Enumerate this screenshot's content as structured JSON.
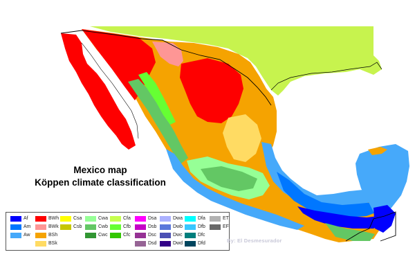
{
  "map": {
    "title_line1": "Mexico map",
    "title_line2": "Köppen climate classification",
    "credit": "By: El Desmesurador"
  },
  "legend": {
    "items": [
      {
        "code": "Af",
        "color": "#0000fe",
        "col": 0,
        "row": 0
      },
      {
        "code": "Am",
        "color": "#0077ff",
        "col": 0,
        "row": 1
      },
      {
        "code": "Aw",
        "color": "#46a9fa",
        "col": 0,
        "row": 2
      },
      {
        "code": "BWh",
        "color": "#fe0000",
        "col": 1,
        "row": 0
      },
      {
        "code": "BWk",
        "color": "#fe9695",
        "col": 1,
        "row": 1
      },
      {
        "code": "BSh",
        "color": "#f5a301",
        "col": 1,
        "row": 2
      },
      {
        "code": "BSk",
        "color": "#ffdb63",
        "col": 1,
        "row": 3
      },
      {
        "code": "Csa",
        "color": "#ffff00",
        "col": 2,
        "row": 0
      },
      {
        "code": "Csb",
        "color": "#c6c700",
        "col": 2,
        "row": 1
      },
      {
        "code": "Cwa",
        "color": "#96ff96",
        "col": 3,
        "row": 0
      },
      {
        "code": "Cwb",
        "color": "#63c764",
        "col": 3,
        "row": 1
      },
      {
        "code": "Cwc",
        "color": "#329633",
        "col": 3,
        "row": 2
      },
      {
        "code": "Cfa",
        "color": "#c6ff4e",
        "col": 4,
        "row": 0
      },
      {
        "code": "Cfb",
        "color": "#66ff33",
        "col": 4,
        "row": 1
      },
      {
        "code": "Cfc",
        "color": "#33c701",
        "col": 4,
        "row": 2
      },
      {
        "code": "Dsa",
        "color": "#ff00fe",
        "col": 5,
        "row": 0
      },
      {
        "code": "Dsb",
        "color": "#c600c7",
        "col": 5,
        "row": 1
      },
      {
        "code": "Dsc",
        "color": "#963295",
        "col": 5,
        "row": 2
      },
      {
        "code": "Dsd",
        "color": "#966495",
        "col": 5,
        "row": 3
      },
      {
        "code": "Dwa",
        "color": "#abb1ff",
        "col": 6,
        "row": 0
      },
      {
        "code": "Dwb",
        "color": "#5a77db",
        "col": 6,
        "row": 1
      },
      {
        "code": "Dwc",
        "color": "#4c51b5",
        "col": 6,
        "row": 2
      },
      {
        "code": "Dwd",
        "color": "#320087",
        "col": 6,
        "row": 3
      },
      {
        "code": "Dfa",
        "color": "#00ffff",
        "col": 7,
        "row": 0
      },
      {
        "code": "Dfb",
        "color": "#38c7ff",
        "col": 7,
        "row": 1
      },
      {
        "code": "Dfc",
        "color": "#007e7d",
        "col": 7,
        "row": 2
      },
      {
        "code": "Dfd",
        "color": "#00455e",
        "col": 7,
        "row": 3
      },
      {
        "code": "ET",
        "color": "#b2b2b2",
        "col": 8,
        "row": 0
      },
      {
        "code": "EF",
        "color": "#686868",
        "col": 8,
        "row": 1
      }
    ]
  },
  "colors": {
    "usa_land": "#c7f34e",
    "border_line": "#000000",
    "BWh": "#fe0000",
    "BWk": "#fe9695",
    "BSh": "#f5a301",
    "BSk": "#ffdb63",
    "Aw": "#46a9fa",
    "Am": "#0077ff",
    "Af": "#0000fe",
    "Cwa": "#96ff96",
    "Cwb": "#63c764",
    "Cfa": "#c6ff4e",
    "Cfb": "#66ff33",
    "Cfc": "#33c701"
  }
}
